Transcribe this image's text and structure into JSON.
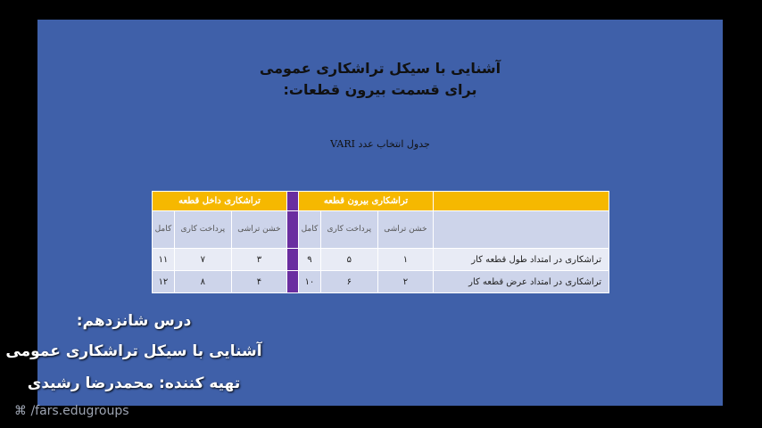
{
  "slide": {
    "title_line1": "آشنایی با سیکل تراشکاری عمومی",
    "title_line2": "برای قسمت بیرون قطعات:",
    "caption": "جدول انتخاب عدد VARI",
    "table": {
      "group_outer": "تراشکاری بیرون قطعه",
      "group_inner": "تراشکاری داخل قطعه",
      "sub_headers": [
        "خشن تراشی",
        "پرداخت کاری",
        "کامل"
      ],
      "rows": [
        {
          "label": "تراشکاری در امتداد طول قطعه کار",
          "outer": [
            "۱",
            "۵",
            "۹"
          ],
          "inner": [
            "۳",
            "۷",
            "۱۱"
          ]
        },
        {
          "label": "تراشکاری در امتداد عرض قطعه کار",
          "outer": [
            "۲",
            "۶",
            "۱۰"
          ],
          "inner": [
            "۴",
            "۸",
            "۱۲"
          ]
        }
      ]
    }
  },
  "overlay": {
    "line1": "درس شانزدهم:",
    "line2": "آشنایی با سیکل تراشکاری عمومی",
    "line3": "تهیه کننده: محمدرضا رشیدی",
    "watermark": "/fars.edugroups"
  },
  "colors": {
    "slide": "#3f60a9",
    "header": "#f6b800",
    "separator": "#6a2ea0"
  }
}
